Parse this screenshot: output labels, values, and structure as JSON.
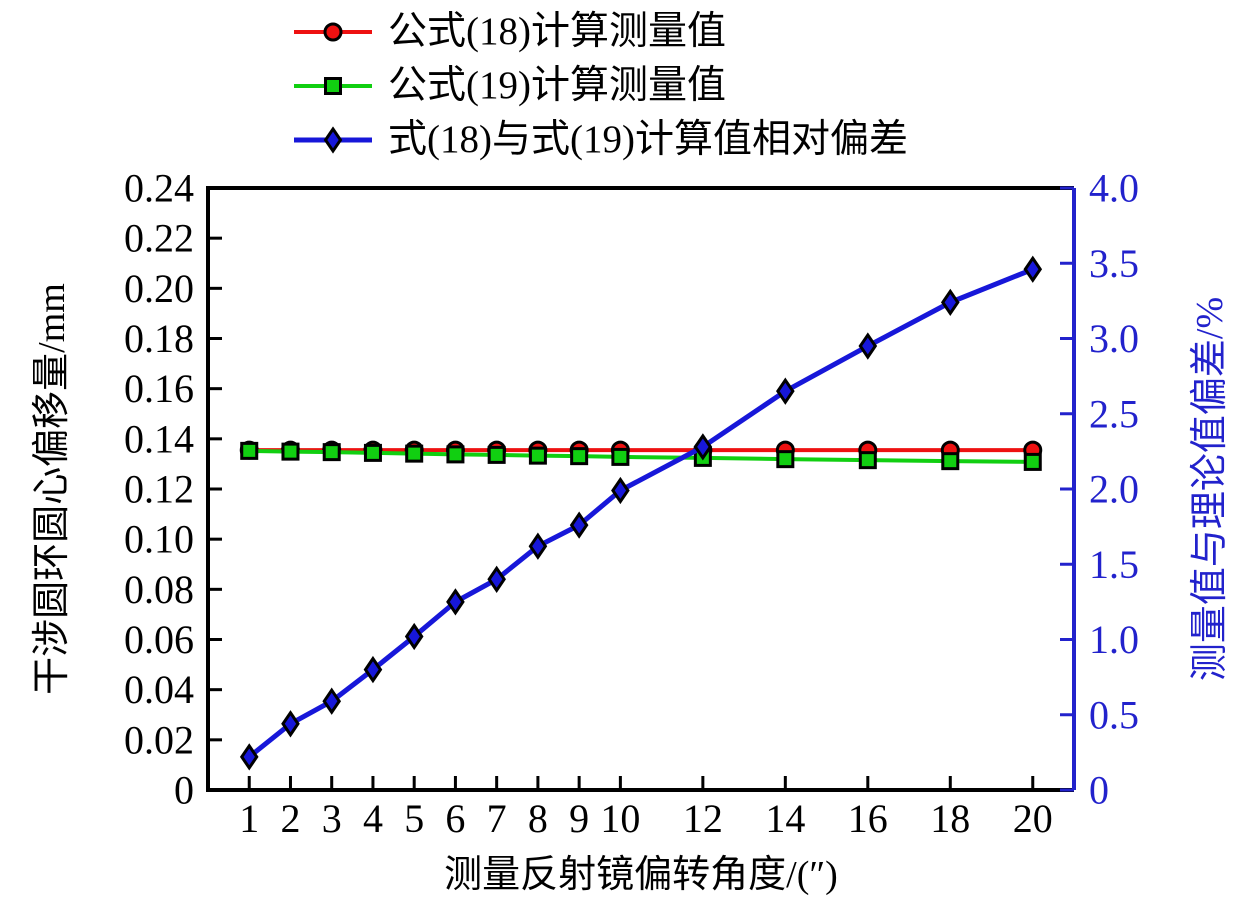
{
  "figure": {
    "background": "#ffffff"
  },
  "legend": {
    "position": "top-left",
    "items": [
      {
        "label": "公式(18)计算测量值",
        "color": "#ee1111",
        "marker": "circle",
        "line_width": 4
      },
      {
        "label": "公式(19)计算测量值",
        "color": "#11cf11",
        "marker": "square",
        "line_width": 4
      },
      {
        "label": "式(18)与式(19)计算值相对偏差",
        "color": "#1717d9",
        "marker": "diamond",
        "line_width": 5
      }
    ]
  },
  "chart_data": {
    "type": "line",
    "title": "",
    "x": [
      1,
      2,
      3,
      4,
      5,
      6,
      7,
      8,
      9,
      10,
      12,
      14,
      16,
      18,
      20
    ],
    "series": [
      {
        "name": "公式(18)计算测量值",
        "axis": "left",
        "color": "#ee1111",
        "marker": "circle",
        "line_width": 4,
        "values": [
          0.1355,
          0.1355,
          0.1355,
          0.1355,
          0.1355,
          0.1355,
          0.1355,
          0.1355,
          0.1355,
          0.1355,
          0.1355,
          0.1355,
          0.1355,
          0.1355,
          0.1355
        ]
      },
      {
        "name": "公式(19)计算测量值",
        "axis": "left",
        "color": "#11cf11",
        "marker": "square",
        "line_width": 4,
        "values": [
          0.1352,
          0.1349,
          0.1347,
          0.1344,
          0.1341,
          0.1338,
          0.1336,
          0.1333,
          0.1331,
          0.1328,
          0.1324,
          0.1319,
          0.1315,
          0.1311,
          0.1308
        ]
      },
      {
        "name": "式(18)与式(19)计算值相对偏差",
        "axis": "right",
        "color": "#1717d9",
        "marker": "diamond",
        "line_width": 5,
        "values": [
          0.22,
          0.44,
          0.59,
          0.8,
          1.02,
          1.25,
          1.4,
          1.62,
          1.76,
          1.99,
          2.28,
          2.65,
          2.95,
          3.24,
          3.46
        ]
      }
    ],
    "x_axis": {
      "label": "测量反射镜偏转角度/(″)",
      "range": [
        0,
        21
      ],
      "ticks": [
        1,
        2,
        3,
        4,
        5,
        6,
        7,
        8,
        9,
        10,
        12,
        14,
        16,
        18,
        20
      ],
      "tick_labels": [
        "1",
        "2",
        "3",
        "4",
        "5",
        "6",
        "7",
        "8",
        "9",
        "10",
        "12",
        "14",
        "16",
        "18",
        "20"
      ],
      "color": "#000000"
    },
    "y_left": {
      "label": "干涉圆环圆心偏移量/mm",
      "range": [
        0,
        0.24
      ],
      "ticks": [
        0,
        0.02,
        0.04,
        0.06,
        0.08,
        0.1,
        0.12,
        0.14,
        0.16,
        0.18,
        0.2,
        0.22,
        0.24
      ],
      "tick_labels": [
        "0",
        "0.02",
        "0.04",
        "0.06",
        "0.08",
        "0.10",
        "0.12",
        "0.14",
        "0.16",
        "0.18",
        "0.20",
        "0.22",
        "0.24"
      ],
      "color": "#000000"
    },
    "y_right": {
      "label": "测量值与理论值偏差/%",
      "range": [
        0,
        4
      ],
      "ticks": [
        0,
        0.5,
        1.0,
        1.5,
        2.0,
        2.5,
        3.0,
        3.5,
        4.0
      ],
      "tick_labels": [
        "0",
        "0.5",
        "1.0",
        "1.5",
        "2.0",
        "2.5",
        "3.0",
        "3.5",
        "4.0"
      ],
      "color": "#2222cc"
    },
    "grid": false,
    "legend_position": "top-left"
  }
}
